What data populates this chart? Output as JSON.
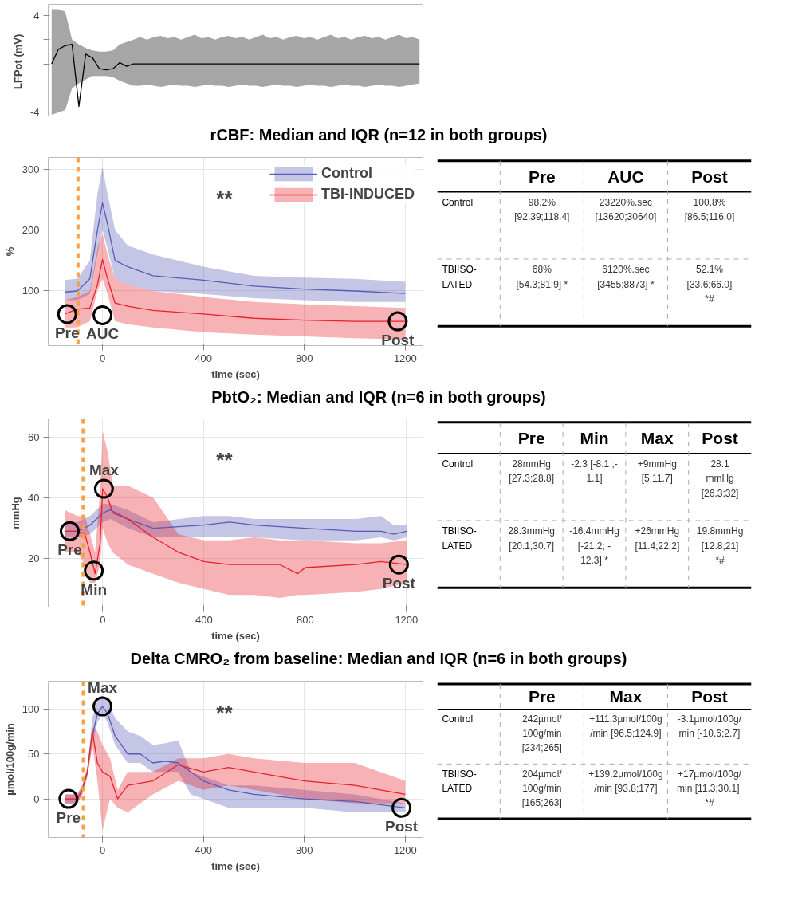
{
  "chart_data": [
    {
      "type": "line",
      "ylabel": "LFPot  (mV)",
      "ylim": [
        -4.3,
        4.9
      ],
      "yticks": [
        -4,
        {
          "value": -2,
          "label": null
        },
        {
          "value": 0,
          "label": null
        },
        {
          "value": 2,
          "label": null
        },
        4
      ],
      "tick_labels": "y",
      "categories": [
        null,
        null,
        null,
        null,
        null,
        null,
        null,
        null,
        null,
        null,
        null,
        null,
        null,
        null,
        null,
        null,
        null,
        null,
        null,
        null,
        null,
        null,
        null,
        null,
        null,
        null,
        null,
        null,
        null,
        null,
        null,
        null,
        null,
        null,
        null,
        null,
        null,
        null,
        null,
        null,
        null,
        null,
        null,
        null,
        null,
        null,
        null,
        null,
        null,
        null,
        null,
        null,
        null,
        null,
        null
      ],
      "series": [
        {
          "color": "#000000",
          "values": [
            0,
            1.2,
            1.5,
            1.6,
            -3.5,
            0.8,
            0.5,
            -0.4,
            -0.5,
            -0.4,
            0.1,
            -0.2,
            0,
            0,
            0,
            0,
            0,
            0,
            0,
            0,
            0,
            0,
            0,
            0,
            0,
            0,
            0,
            0,
            0,
            0,
            0,
            0,
            0,
            0,
            0,
            0,
            0,
            0,
            0,
            0,
            0,
            0,
            0,
            0,
            0,
            0,
            0,
            0,
            0,
            0,
            0,
            0,
            0,
            0,
            0
          ],
          "lower": [
            -4.2,
            -4,
            -3.8,
            -2,
            -1.6,
            -1.3,
            -1,
            -1,
            -1,
            -1.1,
            -1.4,
            -1.6,
            -1.8,
            -1.8,
            -1.7,
            -1.8,
            -1.9,
            -1.8,
            -1.7,
            -1.8,
            -1.8,
            -1.9,
            -1.8,
            -1.7,
            -1.8,
            -1.8,
            -1.9,
            -1.8,
            -1.7,
            -1.8,
            -1.8,
            -1.9,
            -1.8,
            -1.7,
            -1.8,
            -1.8,
            -1.9,
            -1.8,
            -1.7,
            -1.8,
            -1.8,
            -1.9,
            -1.8,
            -1.7,
            -1.8,
            -1.8,
            -1.9,
            -1.8,
            -1.7,
            -1.8,
            -1.8,
            -1.9,
            -1.8,
            -1.7,
            -1.6
          ],
          "upper": [
            4.5,
            4.5,
            4.3,
            2,
            1.6,
            1.3,
            1.1,
            1,
            1,
            1.1,
            1.6,
            1.8,
            2,
            2.2,
            2,
            2.2,
            2.3,
            2.1,
            2.2,
            2,
            2.2,
            2.4,
            2.1,
            2.2,
            2,
            2.2,
            2.3,
            2.1,
            2.2,
            2,
            2.2,
            2.4,
            2.1,
            2.2,
            2,
            2.2,
            2.3,
            2.1,
            2.2,
            2,
            2.2,
            2.4,
            2.1,
            2.2,
            2,
            2.2,
            2.3,
            2.1,
            2.2,
            2,
            2.2,
            2.4,
            2.1,
            2.2,
            2
          ]
        }
      ]
    },
    {
      "type": "line",
      "title": "rCBF: Median and IQR (n=12 in both groups)",
      "xlabel": "time (sec)",
      "ylabel": "%",
      "xlim": [
        -215,
        1270
      ],
      "ylim": [
        10,
        320
      ],
      "xticks": [
        0,
        400,
        800,
        1200
      ],
      "yticks": [
        100,
        200,
        300
      ],
      "grid": true,
      "legend": "top right",
      "ref_lines": [
        {
          "axis": "x",
          "value": -97,
          "color": "#f5a146",
          "line_style": "dashed"
        }
      ],
      "annotations": [
        {
          "text": "Pre",
          "x": -140,
          "y": 62
        },
        {
          "text": "AUC",
          "x": 0,
          "y": 60
        },
        {
          "text": "Post",
          "x": 1170,
          "y": 50
        },
        "**"
      ],
      "series": [
        {
          "name": "Control",
          "color": "#5a5ab8",
          "x": [
            -150,
            -100,
            -50,
            -20,
            0,
            20,
            50,
            100,
            200,
            400,
            600,
            800,
            1000,
            1200
          ],
          "values": [
            98,
            100,
            120,
            200,
            245,
            210,
            150,
            140,
            125,
            118,
            108,
            103,
            100,
            96
          ],
          "lower": [
            85,
            85,
            95,
            160,
            200,
            170,
            120,
            110,
            100,
            95,
            88,
            85,
            82,
            82
          ],
          "upper": [
            118,
            120,
            150,
            260,
            305,
            260,
            200,
            175,
            160,
            140,
            125,
            122,
            120,
            115
          ]
        },
        {
          "name": "TBI-INDUCED",
          "color": "#e8212b",
          "x": [
            -150,
            -100,
            -50,
            -20,
            0,
            20,
            50,
            100,
            200,
            400,
            600,
            800,
            1000,
            1200
          ],
          "values": [
            62,
            70,
            72,
            110,
            152,
            120,
            80,
            75,
            68,
            62,
            55,
            52,
            50,
            50
          ],
          "lower": [
            40,
            40,
            50,
            100,
            120,
            95,
            50,
            45,
            40,
            32,
            28,
            25,
            22,
            20
          ],
          "upper": [
            85,
            90,
            100,
            170,
            195,
            160,
            120,
            110,
            100,
            90,
            82,
            78,
            75,
            72
          ]
        }
      ]
    },
    {
      "type": "other",
      "categories": [
        null,
        "Pre",
        "AUC",
        "Post"
      ],
      "y_categories": [
        "Control",
        "TBIISO-\nLATED"
      ],
      "cell_labels": [
        [
          "98.2%\n[92.39;118.4]",
          "23220%.sec\n[13620;30640]",
          "100.8%\n[86.5;116.0]"
        ],
        [
          "68%\n[54.3;81.9] *",
          "6120%.sec\n[3455;8873] *",
          "52.1%\n[33.6;66.0]\n*#"
        ]
      ]
    },
    {
      "type": "line",
      "title": "PbtO₂: Median and IQR (n=6 in both groups)",
      "xlabel": "time (sec)",
      "ylabel": "mmHg",
      "xlim": [
        -215,
        1265
      ],
      "ylim": [
        4,
        66
      ],
      "xticks": [
        0,
        400,
        800,
        1200
      ],
      "yticks": [
        20,
        40,
        60
      ],
      "grid": true,
      "ref_lines": [
        {
          "axis": "x",
          "value": -77,
          "color": "#f5a146",
          "line_style": "dashed"
        }
      ],
      "annotations": [
        {
          "text": "Pre",
          "x": -130,
          "y": 29
        },
        {
          "text": "Min",
          "x": -35,
          "y": 16
        },
        {
          "text": "Max",
          "x": 5,
          "y": 43
        },
        {
          "text": "Post",
          "x": 1170,
          "y": 18
        },
        "**"
      ],
      "series": [
        {
          "color": "#5a5ab8",
          "x": [
            -150,
            -100,
            -50,
            0,
            30,
            100,
            200,
            400,
            500,
            600,
            800,
            1000,
            1100,
            1150,
            1200
          ],
          "values": [
            29,
            29,
            31,
            35,
            36,
            33,
            30,
            31,
            32,
            31,
            30,
            29,
            29,
            28,
            29
          ],
          "lower": [
            27,
            27,
            28,
            32,
            33,
            30,
            27,
            27,
            27,
            27,
            26,
            26,
            27,
            26,
            27
          ],
          "upper": [
            32,
            32,
            34,
            38,
            38,
            36,
            32,
            34,
            34,
            33,
            33,
            33,
            34,
            31,
            31
          ]
        },
        {
          "color": "#e8212b",
          "x": [
            -150,
            -100,
            -70,
            -50,
            -30,
            -10,
            0,
            20,
            40,
            100,
            200,
            300,
            400,
            500,
            600,
            700,
            770,
            800,
            1000,
            1100,
            1200
          ],
          "values": [
            29,
            29,
            28,
            22,
            15,
            25,
            43,
            40,
            35,
            33,
            27,
            22,
            19,
            18,
            18,
            18,
            15,
            17,
            18,
            19,
            18
          ],
          "lower": [
            22,
            22,
            18,
            12,
            12,
            18,
            30,
            25,
            22,
            18,
            15,
            12,
            10,
            8,
            8,
            7,
            8,
            8,
            9,
            10,
            12
          ],
          "upper": [
            36,
            34,
            34,
            28,
            22,
            42,
            62,
            55,
            44,
            44,
            40,
            28,
            26,
            26,
            27,
            26,
            26,
            26,
            25,
            25,
            26
          ]
        }
      ]
    },
    {
      "type": "other",
      "categories": [
        null,
        "Pre",
        "Min",
        "Max",
        "Post"
      ],
      "y_categories": [
        "Control",
        "TBIISO-\nLATED"
      ],
      "cell_labels": [
        [
          "28mmHg\n[27.3;28.8]",
          "-2.3 [-8.1 ;-\n1.1]",
          "+9mmHg\n[5;11.7]",
          "28.1\nmmHg\n[26.3;32]"
        ],
        [
          "28.3mmHg\n[20.1;30.7]",
          "-16.4mmHg\n[-21.2; -\n12.3] *",
          "+26mmHg\n[11.4;22.2]",
          "19.8mmHg\n[12.8;21]\n*#"
        ]
      ]
    },
    {
      "type": "line",
      "title": "Delta CMRO₂ from baseline:  Median and IQR (n=6 in both groups)",
      "xlabel": "time (sec)",
      "ylabel": "µmol/100g/min",
      "xlim": [
        -215,
        1270
      ],
      "ylim": [
        -43,
        131
      ],
      "xticks": [
        0,
        400,
        800,
        1200
      ],
      "yticks": [
        0,
        50,
        100
      ],
      "grid": true,
      "ref_lines": [
        {
          "axis": "x",
          "value": -76,
          "color": "#f5a146",
          "line_style": "dashed"
        }
      ],
      "annotations": [
        {
          "text": "Pre",
          "x": -135,
          "y": 0
        },
        {
          "text": "Max",
          "x": 0,
          "y": 103
        },
        {
          "text": "Post",
          "x": 1185,
          "y": -10
        },
        "**"
      ],
      "series": [
        {
          "color": "#5a5ab8",
          "x": [
            -150,
            -100,
            -80,
            -60,
            -40,
            -20,
            0,
            20,
            50,
            100,
            150,
            200,
            250,
            300,
            350,
            400,
            500,
            600,
            800,
            1000,
            1200
          ],
          "values": [
            null,
            null,
            null,
            null,
            70,
            95,
            103,
            95,
            70,
            50,
            50,
            40,
            42,
            40,
            30,
            20,
            10,
            5,
            0,
            -3,
            -10
          ],
          "lower": [
            -5,
            -5,
            5,
            25,
            60,
            85,
            95,
            85,
            60,
            40,
            40,
            30,
            30,
            30,
            5,
            0,
            -10,
            -10,
            -10,
            -15,
            -15
          ],
          "upper": [
            5,
            5,
            15,
            35,
            90,
            110,
            115,
            110,
            90,
            75,
            70,
            60,
            62,
            65,
            30,
            25,
            15,
            15,
            10,
            5,
            -5
          ]
        },
        {
          "color": "#e8212b",
          "x": [
            -150,
            -100,
            -80,
            -60,
            -40,
            -20,
            0,
            30,
            60,
            100,
            200,
            300,
            400,
            500,
            600,
            800,
            1000,
            1200
          ],
          "values": [
            0,
            0,
            10,
            30,
            75,
            40,
            30,
            25,
            0,
            15,
            20,
            38,
            30,
            35,
            30,
            20,
            15,
            5
          ],
          "lower": [
            -5,
            -5,
            5,
            25,
            60,
            20,
            -35,
            0,
            -10,
            -15,
            5,
            20,
            10,
            15,
            10,
            0,
            -5,
            -5
          ],
          "upper": [
            5,
            5,
            15,
            35,
            80,
            75,
            60,
            45,
            10,
            30,
            30,
            45,
            45,
            50,
            45,
            40,
            40,
            20
          ]
        }
      ]
    },
    {
      "type": "other",
      "categories": [
        null,
        "Pre",
        "Max",
        "Post"
      ],
      "y_categories": [
        "Control",
        "TBIISO-\nLATED"
      ],
      "cell_labels": [
        [
          "242µmol/\n100g/min\n[234;265]",
          "+111.3µmol/100g\n/min [96.5;124.9]",
          "-3.1µmol/100g/\nmin [-10.6;2.7]"
        ],
        [
          "204µmol/\n100g/min\n[165;263]",
          "+139.2µmol/100g\n/min [93.8;177]",
          "+17µmol/100g/\nmin  [11.3;30.1]\n*#"
        ]
      ]
    }
  ]
}
